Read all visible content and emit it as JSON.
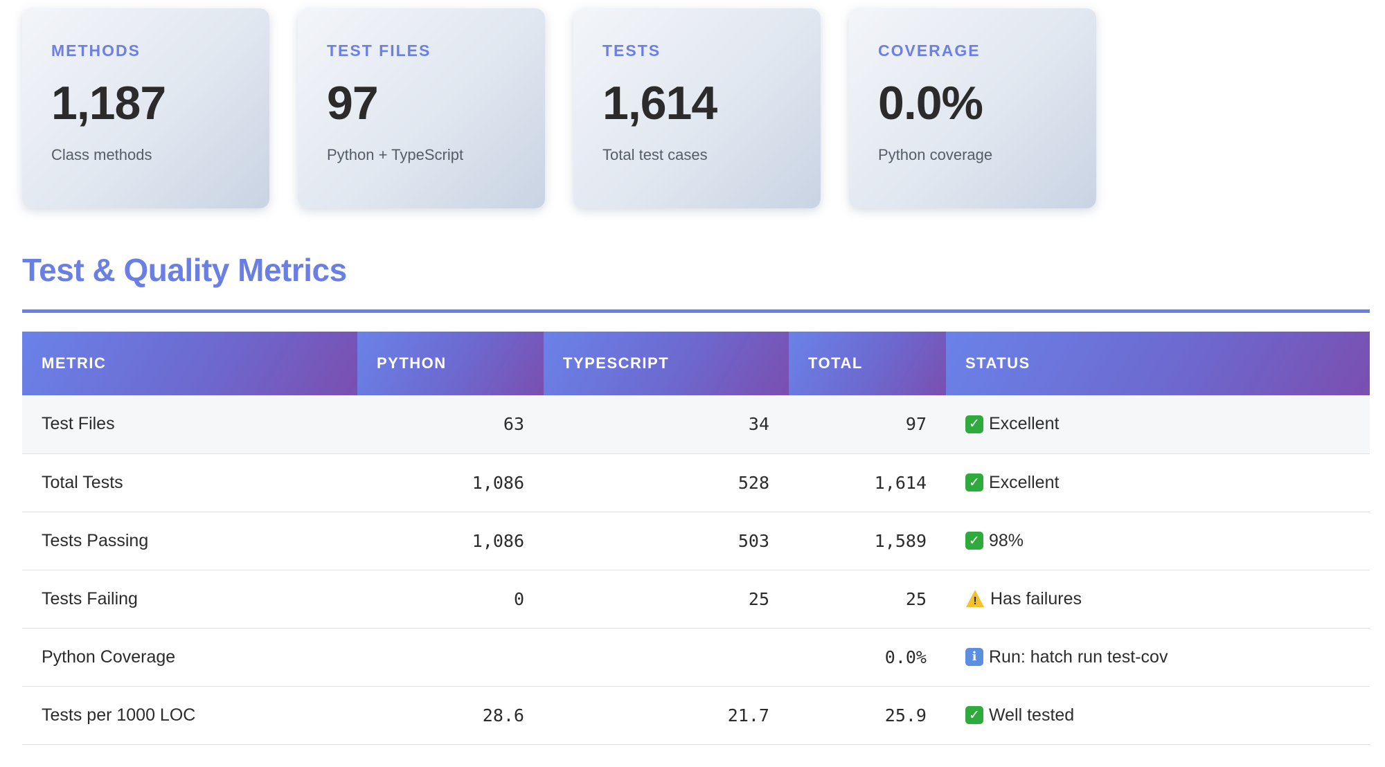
{
  "cards": [
    {
      "label": "METHODS",
      "value": "1,187",
      "desc": "Class methods"
    },
    {
      "label": "TEST FILES",
      "value": "97",
      "desc": "Python + TypeScript"
    },
    {
      "label": "TESTS",
      "value": "1,614",
      "desc": "Total test cases"
    },
    {
      "label": "COVERAGE",
      "value": "0.0%",
      "desc": "Python coverage"
    }
  ],
  "section": {
    "title": "Test & Quality Metrics"
  },
  "table": {
    "headers": [
      "METRIC",
      "PYTHON",
      "TYPESCRIPT",
      "TOTAL",
      "STATUS"
    ],
    "rows": [
      {
        "metric": "Test Files",
        "python": "63",
        "typescript": "34",
        "total": "97",
        "status_icon": "check-icon",
        "status": "Excellent"
      },
      {
        "metric": "Total Tests",
        "python": "1,086",
        "typescript": "528",
        "total": "1,614",
        "status_icon": "check-icon",
        "status": "Excellent"
      },
      {
        "metric": "Tests Passing",
        "python": "1,086",
        "typescript": "503",
        "total": "1,589",
        "status_icon": "check-icon",
        "status": "98%"
      },
      {
        "metric": "Tests Failing",
        "python": "0",
        "typescript": "25",
        "total": "25",
        "status_icon": "warning-icon",
        "status": "Has failures"
      },
      {
        "metric": "Python Coverage",
        "python": "",
        "typescript": "",
        "total": "0.0%",
        "status_icon": "info-icon",
        "status": "Run: hatch run test-cov"
      },
      {
        "metric": "Tests per 1000 LOC",
        "python": "28.6",
        "typescript": "21.7",
        "total": "25.9",
        "status_icon": "check-icon",
        "status": "Well tested"
      }
    ]
  },
  "colors": {
    "accent": "#6a7fe4",
    "success": "#2faa3c",
    "warning": "#f2c228",
    "info": "#5c8fe0"
  }
}
